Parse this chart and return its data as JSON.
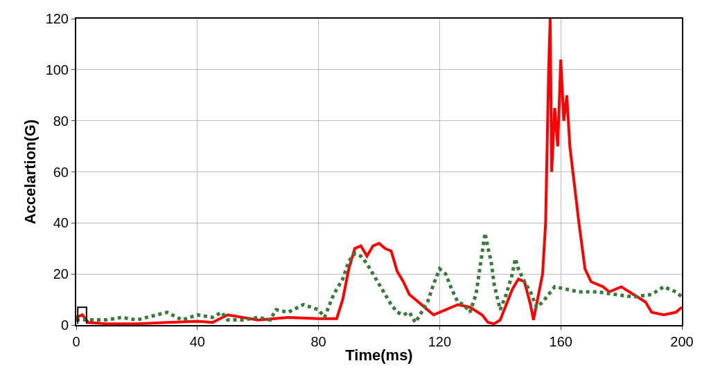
{
  "chart_data": {
    "type": "line",
    "xlabel": "Time(ms)",
    "ylabel": "Accelartion(G)",
    "xlim": [
      0,
      200
    ],
    "xticks": [
      0,
      40,
      80,
      120,
      160,
      200
    ],
    "ylim": [
      0,
      120
    ],
    "yticks": [
      0,
      20,
      40,
      60,
      80,
      100,
      120
    ],
    "grid": true,
    "series": [
      {
        "color": "#ff0000",
        "line_style": "solid",
        "x": [
          0,
          2,
          4,
          10,
          20,
          30,
          40,
          45,
          50,
          55,
          60,
          70,
          80,
          86,
          88,
          90,
          92,
          94,
          96,
          98,
          100,
          102,
          104,
          106,
          108,
          110,
          112,
          116,
          118,
          122,
          126,
          130,
          134,
          136,
          138,
          140,
          142,
          144,
          146,
          148,
          150,
          151,
          152,
          154,
          155,
          156,
          156.5,
          157,
          158,
          159,
          160,
          161,
          162,
          163,
          164,
          166,
          168,
          170,
          174,
          176,
          180,
          184,
          188,
          190,
          194,
          198,
          200
        ],
        "values": [
          3,
          4,
          1,
          0.5,
          0.5,
          1,
          1.5,
          1,
          4,
          3,
          2,
          3,
          2.5,
          2.5,
          10,
          22,
          30,
          31,
          27,
          31,
          32,
          30,
          29,
          21,
          17,
          12,
          10,
          6,
          4,
          6,
          8,
          7,
          4,
          1,
          0.5,
          2,
          8,
          14,
          18,
          17,
          8,
          2,
          8,
          20,
          40,
          100,
          120,
          60,
          85,
          70,
          104,
          80,
          90,
          70,
          60,
          40,
          22,
          17,
          15,
          13,
          15,
          12,
          9,
          5,
          4,
          5,
          7
        ]
      },
      {
        "color": "#3a7a3a",
        "line_style": "dotted",
        "x": [
          0,
          10,
          15,
          20,
          30,
          35,
          40,
          45,
          48,
          50,
          55,
          60,
          64,
          66,
          70,
          75,
          80,
          82,
          85,
          88,
          90,
          92,
          94,
          96,
          98,
          100,
          102,
          104,
          106,
          108,
          110,
          112,
          114,
          116,
          118,
          120,
          122,
          124,
          126,
          128,
          130,
          132,
          134,
          135,
          136,
          137,
          138,
          140,
          142,
          144,
          145,
          146,
          148,
          150,
          152,
          154,
          158,
          162,
          166,
          172,
          178,
          184,
          190,
          194,
          198,
          200
        ],
        "values": [
          2,
          2,
          3,
          2,
          5,
          2,
          4,
          3,
          5,
          2,
          2,
          3,
          2,
          6,
          5,
          8,
          6,
          3,
          12,
          18,
          25,
          28,
          27,
          24,
          20,
          16,
          12,
          8,
          5,
          4,
          5,
          1,
          5,
          9,
          16,
          22,
          20,
          14,
          9,
          8,
          5,
          12,
          28,
          36,
          30,
          25,
          16,
          6,
          12,
          20,
          26,
          22,
          17,
          13,
          7,
          9,
          15,
          14,
          13,
          13,
          12,
          11,
          12,
          15,
          13,
          11
        ]
      },
      {
        "color": "#000000",
        "line_style": "solid",
        "x": [
          0.5,
          0.5,
          3.4,
          3.4
        ],
        "values": [
          0.5,
          7,
          7,
          0.5
        ]
      }
    ]
  }
}
